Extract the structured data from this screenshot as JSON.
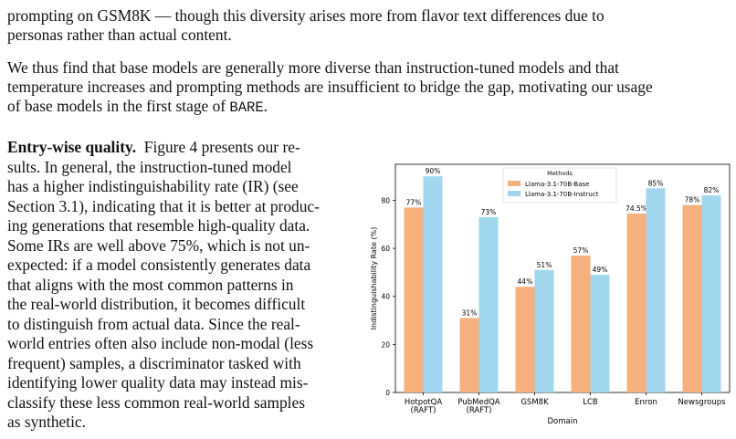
{
  "paragraphs": {
    "p1_lines": [
      "prompting on GSM8K — though this diversity arises more from flavor text differences due to",
      "personas rather than actual content."
    ],
    "p2_lines": [
      "We thus find that base models are generally more diverse than instruction-tuned models and that",
      "temperature increases and prompting methods are insufficient to bridge the gap, motivating our usage",
      "of base models in the first stage of "
    ],
    "p2_code": "BARE",
    "p2_end": ".",
    "p3_heading": "Entry-wise quality.",
    "p3_lines": [
      "Figure 4 presents our re-",
      "sults. In general, the instruction-tuned model",
      "has a higher indistinguishability rate (IR) (see",
      "Section 3.1), indicating that it is better at produc-",
      "ing generations that resemble high-quality data.",
      "Some IRs are well above 75%, which is not un-",
      "expected: if a model consistently generates data",
      "that aligns with the most common patterns in",
      "the real-world distribution, it becomes difficult",
      "to distinguish from actual data. Since the real-",
      "world entries often also include non-modal (less",
      "frequent) samples, a discriminator tasked with",
      "identifying lower quality data may instead mis-",
      "classify these less common real-world samples",
      "as synthetic."
    ]
  },
  "chart_data": {
    "type": "bar",
    "categories": [
      "HotpotQA\n(RAFT)",
      "PubMedQA\n(RAFT)",
      "GSM8K",
      "LCB",
      "Enron",
      "Newsgroups"
    ],
    "series": [
      {
        "name": "Llama-3.1-70B-Base",
        "values": [
          77,
          31,
          44,
          57,
          74.5,
          78
        ],
        "labels": [
          "77%",
          "31%",
          "44%",
          "57%",
          "74.5%",
          "78%"
        ],
        "color": "#F5B07E"
      },
      {
        "name": "Llama-3.1-70B-Instruct",
        "values": [
          90,
          73,
          51,
          49,
          85,
          82
        ],
        "labels": [
          "90%",
          "73%",
          "51%",
          "49%",
          "85%",
          "82%"
        ],
        "color": "#A0D6EE"
      }
    ],
    "xlabel": "Domain",
    "ylabel": "Indistinguishability Rate (%)",
    "ylim": [
      0,
      95
    ],
    "yticks": [
      0,
      20,
      40,
      60,
      80
    ],
    "legend_title": "Methods",
    "legend_position": "top-right",
    "grid": false
  }
}
